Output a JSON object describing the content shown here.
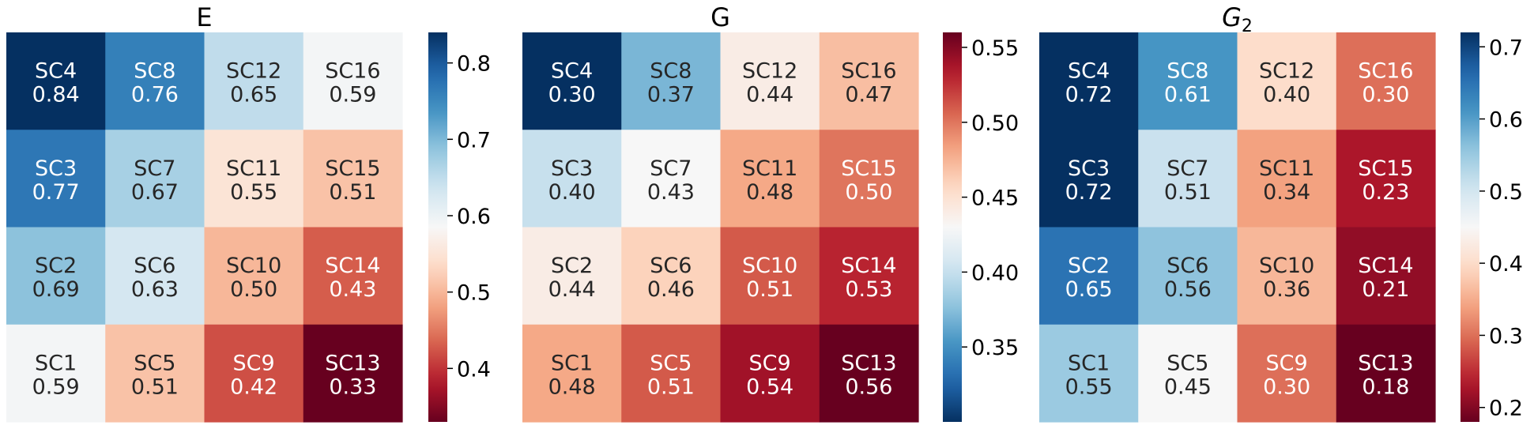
{
  "chart_data": [
    {
      "type": "heatmap",
      "title": "E",
      "title_italic": false,
      "rows": [
        [
          {
            "label": "SC4",
            "value": 0.84
          },
          {
            "label": "SC8",
            "value": 0.76
          },
          {
            "label": "SC12",
            "value": 0.65
          },
          {
            "label": "SC16",
            "value": 0.59
          }
        ],
        [
          {
            "label": "SC3",
            "value": 0.77
          },
          {
            "label": "SC7",
            "value": 0.67
          },
          {
            "label": "SC11",
            "value": 0.55
          },
          {
            "label": "SC15",
            "value": 0.51
          }
        ],
        [
          {
            "label": "SC2",
            "value": 0.69
          },
          {
            "label": "SC6",
            "value": 0.63
          },
          {
            "label": "SC10",
            "value": 0.5
          },
          {
            "label": "SC14",
            "value": 0.43
          }
        ],
        [
          {
            "label": "SC1",
            "value": 0.59
          },
          {
            "label": "SC5",
            "value": 0.51
          },
          {
            "label": "SC9",
            "value": 0.42
          },
          {
            "label": "SC13",
            "value": 0.33
          }
        ]
      ],
      "colormap": "RdBu",
      "high_color": "blue",
      "colorbar": {
        "min": 0.33,
        "max": 0.84,
        "ticks": [
          0.4,
          0.5,
          0.6,
          0.7,
          0.8
        ],
        "tick_labels": [
          "0.4",
          "0.5",
          "0.6",
          "0.7",
          "0.8"
        ]
      }
    },
    {
      "type": "heatmap",
      "title": "G",
      "title_italic": false,
      "rows": [
        [
          {
            "label": "SC4",
            "value": 0.3
          },
          {
            "label": "SC8",
            "value": 0.37
          },
          {
            "label": "SC12",
            "value": 0.44
          },
          {
            "label": "SC16",
            "value": 0.47
          }
        ],
        [
          {
            "label": "SC3",
            "value": 0.4
          },
          {
            "label": "SC7",
            "value": 0.43
          },
          {
            "label": "SC11",
            "value": 0.48
          },
          {
            "label": "SC15",
            "value": 0.5
          }
        ],
        [
          {
            "label": "SC2",
            "value": 0.44
          },
          {
            "label": "SC6",
            "value": 0.46
          },
          {
            "label": "SC10",
            "value": 0.51
          },
          {
            "label": "SC14",
            "value": 0.53
          }
        ],
        [
          {
            "label": "SC1",
            "value": 0.48
          },
          {
            "label": "SC5",
            "value": 0.51
          },
          {
            "label": "SC9",
            "value": 0.54
          },
          {
            "label": "SC13",
            "value": 0.56
          }
        ]
      ],
      "colormap": "RdBu_r",
      "high_color": "red",
      "colorbar": {
        "min": 0.3,
        "max": 0.56,
        "ticks": [
          0.35,
          0.4,
          0.45,
          0.5,
          0.55
        ],
        "tick_labels": [
          "0.35",
          "0.40",
          "0.45",
          "0.50",
          "0.55"
        ]
      }
    },
    {
      "type": "heatmap",
      "title": "G",
      "title_subscript": "2",
      "title_italic": true,
      "rows": [
        [
          {
            "label": "SC4",
            "value": 0.72
          },
          {
            "label": "SC8",
            "value": 0.61
          },
          {
            "label": "SC12",
            "value": 0.4
          },
          {
            "label": "SC16",
            "value": 0.3
          }
        ],
        [
          {
            "label": "SC3",
            "value": 0.72
          },
          {
            "label": "SC7",
            "value": 0.51
          },
          {
            "label": "SC11",
            "value": 0.34
          },
          {
            "label": "SC15",
            "value": 0.23
          }
        ],
        [
          {
            "label": "SC2",
            "value": 0.65
          },
          {
            "label": "SC6",
            "value": 0.56
          },
          {
            "label": "SC10",
            "value": 0.36
          },
          {
            "label": "SC14",
            "value": 0.21
          }
        ],
        [
          {
            "label": "SC1",
            "value": 0.55
          },
          {
            "label": "SC5",
            "value": 0.45
          },
          {
            "label": "SC9",
            "value": 0.3
          },
          {
            "label": "SC13",
            "value": 0.18
          }
        ]
      ],
      "colormap": "RdBu",
      "high_color": "blue",
      "colorbar": {
        "min": 0.18,
        "max": 0.72,
        "ticks": [
          0.2,
          0.3,
          0.4,
          0.5,
          0.6,
          0.7
        ],
        "tick_labels": [
          "0.2",
          "0.3",
          "0.4",
          "0.5",
          "0.6",
          "0.7"
        ]
      }
    }
  ]
}
